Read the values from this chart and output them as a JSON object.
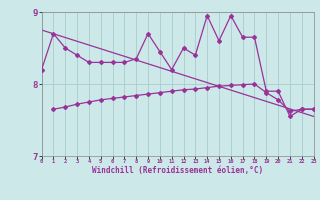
{
  "x": [
    0,
    1,
    2,
    3,
    4,
    5,
    6,
    7,
    8,
    9,
    10,
    11,
    12,
    13,
    14,
    15,
    16,
    17,
    18,
    19,
    20,
    21,
    22,
    23
  ],
  "windchill": [
    8.2,
    8.7,
    8.5,
    8.4,
    8.3,
    8.3,
    8.3,
    8.3,
    8.35,
    8.7,
    8.45,
    8.2,
    8.5,
    8.4,
    8.95,
    8.6,
    8.95,
    8.65,
    8.65,
    7.9,
    7.9,
    7.55,
    7.65,
    7.65
  ],
  "trend_x": [
    0,
    23
  ],
  "trend_y": [
    8.75,
    7.55
  ],
  "smooth_x": [
    1,
    2,
    3,
    4,
    5,
    6,
    7,
    8,
    9,
    10,
    11,
    12,
    13,
    14,
    15,
    16,
    17,
    18,
    19,
    20,
    21,
    22,
    23
  ],
  "smooth_y": [
    7.65,
    7.68,
    7.72,
    7.75,
    7.78,
    7.8,
    7.82,
    7.84,
    7.86,
    7.88,
    7.9,
    7.92,
    7.93,
    7.95,
    7.97,
    7.98,
    7.99,
    8.0,
    7.88,
    7.78,
    7.62,
    7.65,
    7.65
  ],
  "line_color": "#993399",
  "bg_color": "#cce8e8",
  "grid_color": "#aacccc",
  "ylim": [
    7.0,
    9.0
  ],
  "xlim": [
    0,
    23
  ],
  "yticks": [
    7,
    8,
    9
  ],
  "xlabel": "Windchill (Refroidissement éolien,°C)",
  "marker": "D",
  "marker_size": 2.0,
  "line_width": 0.9
}
